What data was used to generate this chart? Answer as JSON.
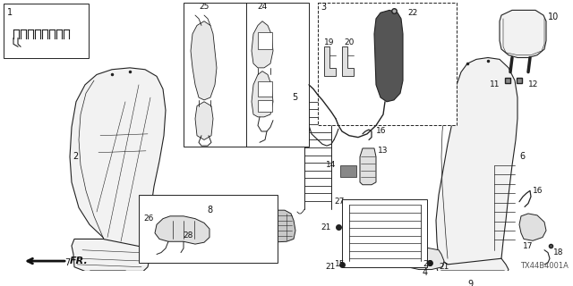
{
  "background_color": "#ffffff",
  "line_color": "#222222",
  "diagram_code": "TX44B4001A",
  "fr_label": "FR.",
  "figsize": [
    6.4,
    3.2
  ],
  "dpi": 100
}
